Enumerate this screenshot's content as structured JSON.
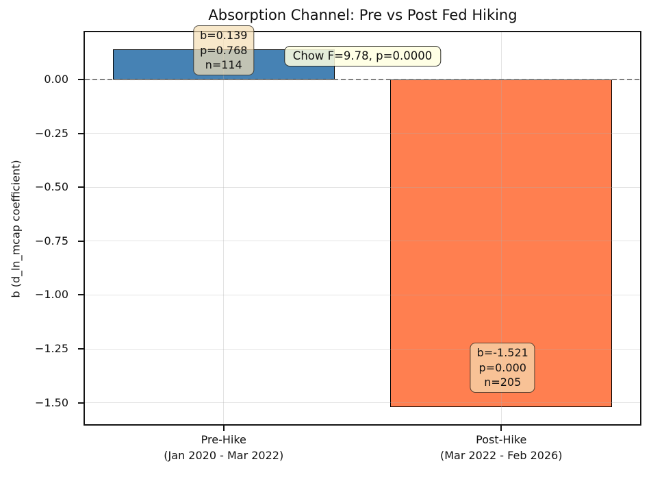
{
  "chart_data": {
    "type": "bar",
    "title": "Absorption Channel: Pre vs Post Fed Hiking",
    "ylabel": "b (d_ln_mcap coefficient)",
    "xlabel": "",
    "ylim": [
      -1.6,
      0.22
    ],
    "grid": true,
    "legend": "none",
    "zero_line": {
      "style": "dashed",
      "color": "#7f7f7f"
    },
    "yticks": {
      "values": [
        0,
        -0.25,
        -0.5,
        -0.75,
        -1.0,
        -1.25,
        -1.5
      ],
      "labels": [
        "0.00",
        "−0.25",
        "−0.50",
        "−0.75",
        "−1.00",
        "−1.25",
        "−1.50"
      ]
    },
    "bars": [
      {
        "id": "pre-hike",
        "category_line1": "Pre-Hike",
        "category_line2": "(Jan 2020 - Mar 2022)",
        "value": 0.139,
        "p_value": 0.768,
        "n": 114,
        "color": "#4682B4",
        "edge_color": "#000000",
        "stats_box": {
          "line1": "b=0.139",
          "line2": "p=0.768",
          "line3": "n=114",
          "facecolor": "wheat"
        }
      },
      {
        "id": "post-hike",
        "category_line1": "Post-Hike",
        "category_line2": "(Mar 2022 - Feb 2026)",
        "value": -1.521,
        "p_value": 0.0,
        "n": 205,
        "color": "#FF7F50",
        "edge_color": "#000000",
        "stats_box": {
          "line1": "b=-1.521",
          "line2": "p=0.000",
          "line3": "n=205",
          "facecolor": "wheat"
        }
      }
    ],
    "annotation": {
      "text": "Chow F=9.78, p=0.0000",
      "facecolor": "lightyellow"
    }
  }
}
